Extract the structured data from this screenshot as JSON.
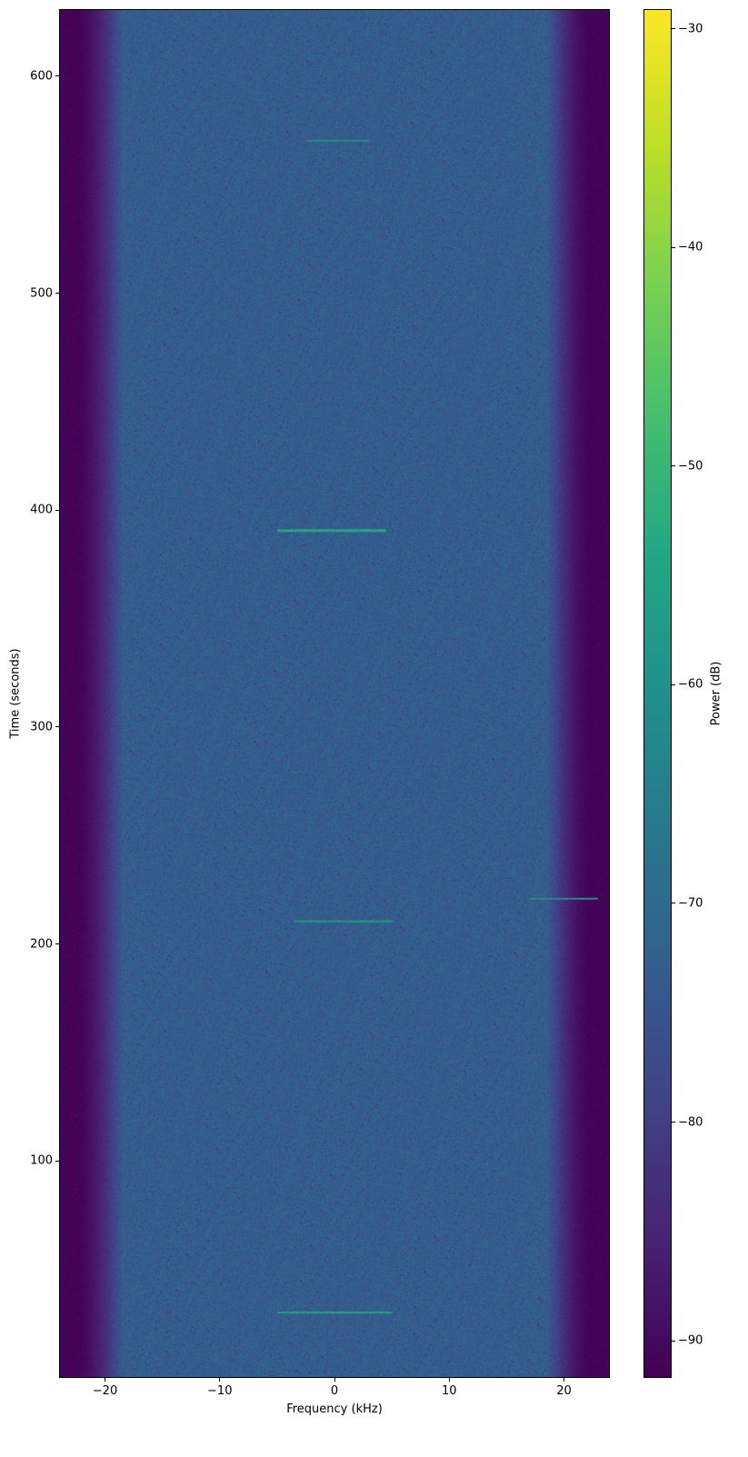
{
  "chart_data": {
    "type": "heatmap",
    "title": "",
    "xlabel": "Frequency (kHz)",
    "ylabel": "Time (seconds)",
    "xlim": [
      -24,
      24
    ],
    "ylim": [
      0,
      631
    ],
    "xticks": [
      -20,
      -10,
      0,
      10,
      20
    ],
    "xtick_labels": [
      "−20",
      "−10",
      "0",
      "10",
      "20"
    ],
    "yticks": [
      100,
      200,
      300,
      400,
      500,
      600
    ],
    "ytick_labels": [
      "100",
      "200",
      "300",
      "400",
      "500",
      "600"
    ],
    "colormap": "viridis",
    "colorbar": {
      "label": "Power (dB)",
      "clim": [
        -91.7,
        -29.1
      ],
      "ticks": [
        -90,
        -80,
        -70,
        -60,
        -50,
        -40,
        -30
      ],
      "tick_labels": [
        "−90",
        "−80",
        "−70",
        "−60",
        "−50",
        "−40",
        "−30"
      ]
    },
    "background_level_db": -73,
    "edge_level_db": -91,
    "passband_khz": [
      -20,
      20
    ],
    "features": [
      {
        "time": 571,
        "f_start": -2.5,
        "f_end": 3,
        "level_db": -62
      },
      {
        "time": 391,
        "f_start": -5,
        "f_end": 4.5,
        "level_db": -55
      },
      {
        "time": 221,
        "f_start": 17,
        "f_end": 23,
        "level_db": -62
      },
      {
        "time": 210.5,
        "f_start": -3.5,
        "f_end": 5,
        "level_db": -58
      },
      {
        "time": 30,
        "f_start": -5,
        "f_end": 5,
        "level_db": -56
      }
    ]
  }
}
